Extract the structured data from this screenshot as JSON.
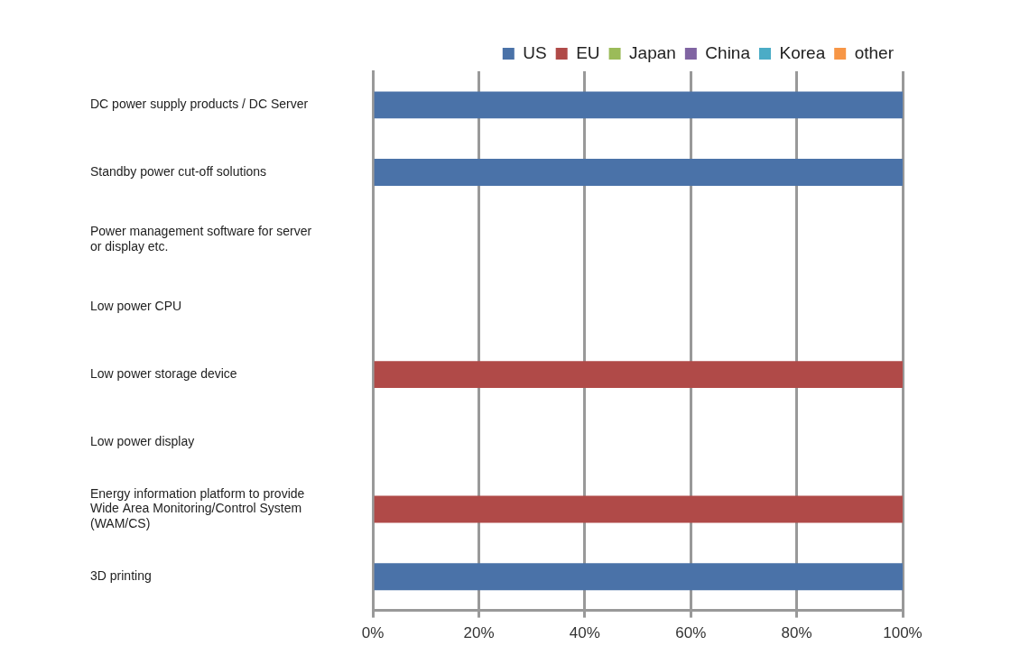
{
  "chart_data": {
    "type": "bar",
    "orientation": "horizontal",
    "stacked": true,
    "grid": true,
    "legend": "top",
    "categories": [
      "DC power supply products / DC Server",
      "Standby power cut-off solutions",
      "Power management software for server or display etc.",
      "Low power CPU",
      "Low power storage device",
      "Low power display",
      "Energy information platform to provide Wide Area Monitoring/Control System (WAM/CS)",
      "3D printing"
    ],
    "series": [
      {
        "name": "US",
        "color": "#4a72a8",
        "values": [
          100,
          100,
          0,
          0,
          0,
          0,
          0,
          100
        ]
      },
      {
        "name": "EU",
        "color": "#b04a48",
        "values": [
          0,
          0,
          0,
          0,
          100,
          0,
          100,
          0
        ]
      },
      {
        "name": "Japan",
        "color": "#9bbb59",
        "values": [
          0,
          0,
          0,
          0,
          0,
          0,
          0,
          0
        ]
      },
      {
        "name": "China",
        "color": "#8064a2",
        "values": [
          0,
          0,
          0,
          0,
          0,
          0,
          0,
          0
        ]
      },
      {
        "name": "Korea",
        "color": "#4bacc6",
        "values": [
          0,
          0,
          0,
          0,
          0,
          0,
          0,
          0
        ]
      },
      {
        "name": "other",
        "color": "#f79646",
        "values": [
          0,
          0,
          0,
          0,
          0,
          0,
          0,
          0
        ]
      }
    ],
    "xlim": [
      0,
      100
    ],
    "xticks": [
      {
        "value": 0,
        "label": "0%"
      },
      {
        "value": 20,
        "label": "20%"
      },
      {
        "value": 40,
        "label": "40%"
      },
      {
        "value": 60,
        "label": "60%"
      },
      {
        "value": 80,
        "label": "80%"
      },
      {
        "value": 100,
        "label": "100%"
      }
    ]
  }
}
